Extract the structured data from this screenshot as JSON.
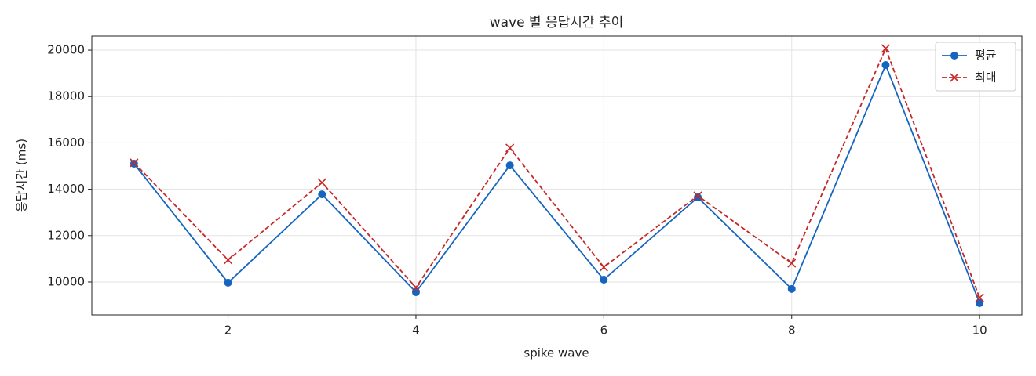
{
  "chart_data": {
    "type": "line",
    "title": "wave 별 응답시간 추이",
    "x_label": "spike wave",
    "y_label": "응답시간 (ms)",
    "x": [
      1,
      2,
      3,
      4,
      5,
      6,
      7,
      8,
      9,
      10
    ],
    "series": [
      {
        "name": "평균",
        "color": "#1565c0",
        "marker": "o",
        "dash": false,
        "values": [
          15100,
          9970,
          13780,
          9560,
          15030,
          10100,
          13650,
          9700,
          19360,
          9090
        ]
      },
      {
        "name": "최대",
        "color": "#c62828",
        "marker": "x",
        "dash": true,
        "values": [
          15140,
          10950,
          14290,
          9760,
          15780,
          10640,
          13720,
          10810,
          20070,
          9320
        ]
      }
    ],
    "xlim": [
      0.55,
      10.45
    ],
    "xticks": [
      2,
      4,
      6,
      8,
      10
    ],
    "ylim": [
      8580,
      20610
    ],
    "yticks": [
      10000,
      12000,
      14000,
      16000,
      18000,
      20000
    ],
    "grid": true,
    "legend": "upper right"
  }
}
